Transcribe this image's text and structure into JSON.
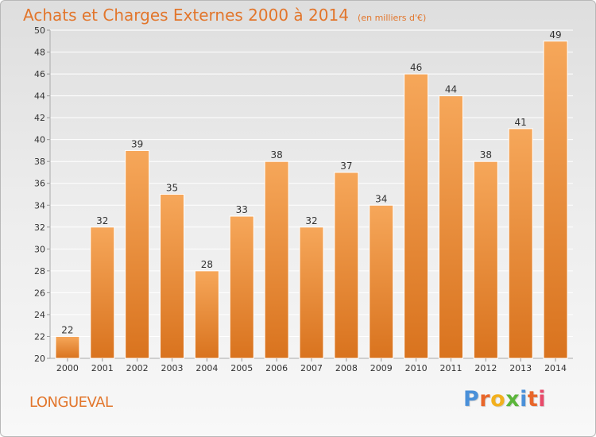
{
  "header": {
    "title": "Achats et Charges Externes 2000 à 2014",
    "unit": "(en milliers d'€)"
  },
  "footer": {
    "place": "LONGUEVAL",
    "brand": "Proxiti",
    "brand_letters": [
      {
        "ch": "P",
        "color": "#4a90d9"
      },
      {
        "ch": "r",
        "color": "#e8662a"
      },
      {
        "ch": "o",
        "color": "#f2b01e"
      },
      {
        "ch": "x",
        "color": "#5bb53a"
      },
      {
        "ch": "i",
        "color": "#4a90d9"
      },
      {
        "ch": "t",
        "color": "#e8662a"
      },
      {
        "ch": "i",
        "color": "#e84a6a"
      }
    ]
  },
  "colors": {
    "bar_top": "#f6a75a",
    "bar_bottom": "#d9731e",
    "accent": "#e2762c",
    "grid": "#ffffff",
    "axis_text": "#333333"
  },
  "chart_data": {
    "type": "bar",
    "categories": [
      "2000",
      "2001",
      "2002",
      "2003",
      "2004",
      "2005",
      "2006",
      "2007",
      "2008",
      "2009",
      "2010",
      "2011",
      "2012",
      "2013",
      "2014"
    ],
    "values": [
      22,
      32,
      39,
      35,
      28,
      33,
      38,
      32,
      37,
      34,
      46,
      44,
      38,
      41,
      49
    ],
    "ylim": [
      20,
      50
    ],
    "yticks": [
      20,
      22,
      24,
      26,
      28,
      30,
      32,
      34,
      36,
      38,
      40,
      42,
      44,
      46,
      48,
      50
    ],
    "grid": true,
    "data_labels": true
  }
}
